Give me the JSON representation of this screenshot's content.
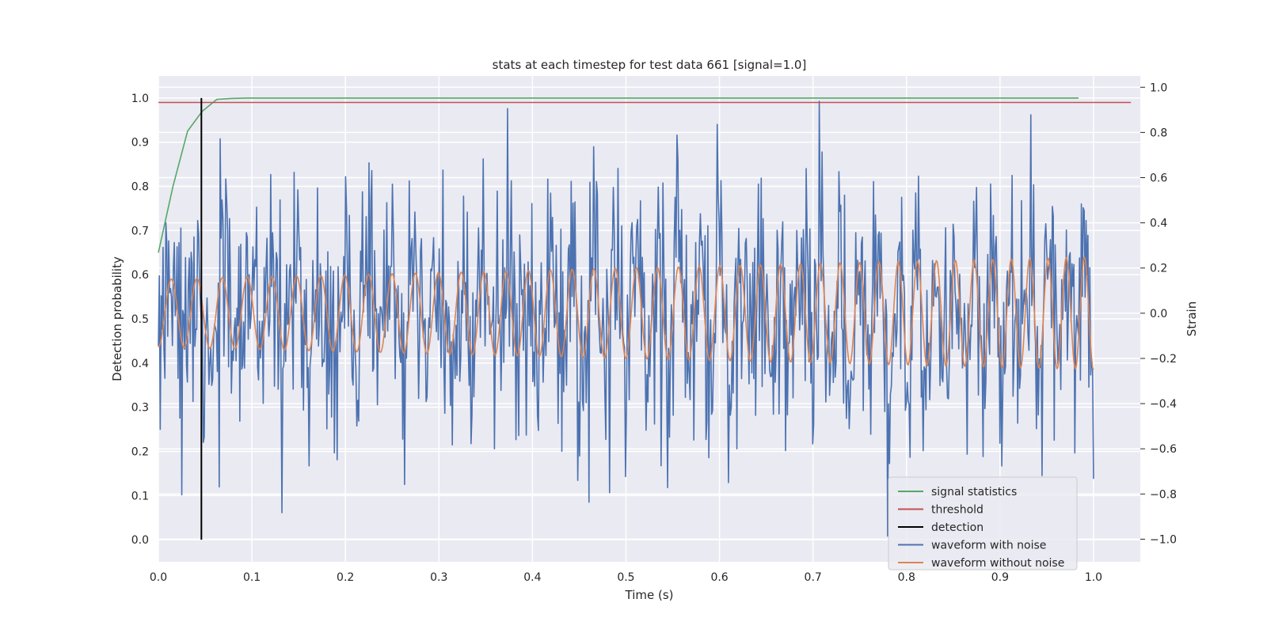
{
  "chart_data": {
    "type": "line",
    "title": "stats at each timestep for test data 661 [signal=1.0]",
    "xlabel": "Time (s)",
    "ylabel": "Detection probability",
    "y2label": "Strain",
    "xlim": [
      0.0,
      1.05
    ],
    "ylim": [
      -0.05,
      1.05
    ],
    "y2lim": [
      -1.1,
      1.05
    ],
    "xticks": [
      "0.0",
      "0.1",
      "0.2",
      "0.3",
      "0.4",
      "0.5",
      "0.6",
      "0.7",
      "0.8",
      "0.9",
      "1.0"
    ],
    "yticks": [
      "0.0",
      "0.1",
      "0.2",
      "0.3",
      "0.4",
      "0.5",
      "0.6",
      "0.7",
      "0.8",
      "0.9",
      "1.0"
    ],
    "y2ticks": [
      "−1.0",
      "−0.8",
      "−0.6",
      "−0.4",
      "−0.2",
      "0.0",
      "0.2",
      "0.4",
      "0.6",
      "0.8",
      "1.0"
    ],
    "grid": true,
    "legend_position": "lower-right",
    "series": [
      {
        "name": "signal statistics",
        "color": "#55a868",
        "axis": "left",
        "x": [
          0.0,
          0.0156,
          0.0312,
          0.0469,
          0.0625,
          0.0781,
          0.0938,
          0.2,
          0.4,
          0.6,
          0.8,
          0.984
        ],
        "y": [
          0.65,
          0.8,
          0.925,
          0.97,
          0.997,
          0.999,
          1.0,
          1.0,
          1.0,
          1.0,
          1.0,
          1.0
        ]
      },
      {
        "name": "threshold",
        "color": "#c44e52",
        "axis": "left",
        "x": [
          0.0,
          1.04
        ],
        "y": [
          0.99,
          0.99
        ]
      },
      {
        "name": "detection",
        "color": "#000000",
        "axis": "left",
        "x": [
          0.046,
          0.046
        ],
        "y": [
          0.0,
          1.0
        ]
      },
      {
        "name": "waveform with noise",
        "color": "#4c72b0",
        "axis": "right",
        "generated": "noisy",
        "t_range": [
          0.0,
          1.0
        ],
        "n_points": 1000,
        "y_range": [
          -1.0,
          1.0
        ]
      },
      {
        "name": "waveform without noise",
        "color": "#dd8452",
        "axis": "right",
        "generated": "chirp",
        "t_range": [
          0.0,
          1.0
        ],
        "n_points": 1000,
        "amplitude_start": 0.15,
        "amplitude_end": 0.25,
        "frequency_start": 36,
        "frequency_end": 52
      }
    ]
  }
}
